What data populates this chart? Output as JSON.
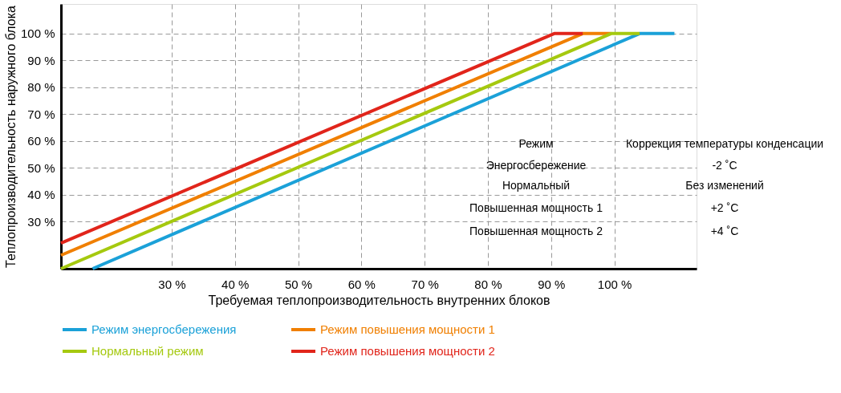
{
  "chart_data": {
    "type": "line",
    "xlabel": "Требуемая теплопроизводительность внутренних блоков",
    "ylabel": "Теплопроизводительность наружного блока",
    "xlim": [
      12.5,
      113
    ],
    "ylim": [
      12.5,
      111
    ],
    "xticks": [
      {
        "value": 30,
        "label": "30 %"
      },
      {
        "value": 40,
        "label": "40 %"
      },
      {
        "value": 50,
        "label": "50 %"
      },
      {
        "value": 60,
        "label": "60 %"
      },
      {
        "value": 70,
        "label": "70 %"
      },
      {
        "value": 80,
        "label": "80 %"
      },
      {
        "value": 90,
        "label": "90 %"
      },
      {
        "value": 100,
        "label": "100 %"
      }
    ],
    "yticks": [
      {
        "value": 30,
        "label": "30 %"
      },
      {
        "value": 40,
        "label": "40 %"
      },
      {
        "value": 50,
        "label": "50 %"
      },
      {
        "value": 60,
        "label": "60 %"
      },
      {
        "value": 70,
        "label": "70 %"
      },
      {
        "value": 80,
        "label": "80 %"
      },
      {
        "value": 90,
        "label": "90 %"
      },
      {
        "value": 100,
        "label": "100 %"
      }
    ],
    "grid": true,
    "legend": "bottom",
    "marker": "none",
    "line_style": "solid",
    "series": [
      {
        "name": "Режим энергосбережения",
        "color": "#1ba1d8",
        "x": [
          17.5,
          104,
          109.5
        ],
        "values": [
          12.5,
          100,
          100
        ]
      },
      {
        "name": "Режим повышения мощности 1",
        "color": "#f07f00",
        "x": [
          12.5,
          95,
          99.5
        ],
        "values": [
          17.5,
          100,
          100
        ]
      },
      {
        "name": "Нормальный режим",
        "color": "#a5c90f",
        "x": [
          12.5,
          99.5,
          104
        ],
        "values": [
          12.5,
          100,
          100
        ]
      },
      {
        "name": "Режим повышения мощности 2",
        "color": "#e1251b",
        "x": [
          12.5,
          90.5,
          95
        ],
        "values": [
          22,
          100,
          100
        ]
      }
    ],
    "annotations": [
      "Режим",
      "Коррекция температуры конденсации",
      "Энергосбережение",
      "-2 ˚C",
      "Нормальный",
      "Без изменений",
      "Повышенная мощность 1",
      "+2 ˚C",
      "Повышенная мощность 2",
      "+4 ˚C"
    ]
  }
}
